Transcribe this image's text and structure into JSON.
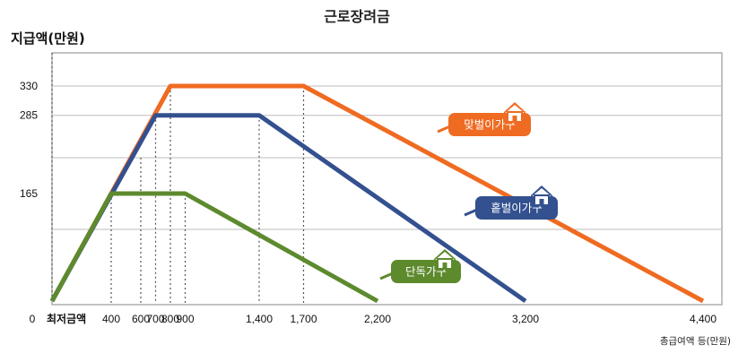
{
  "chart_data": {
    "type": "line",
    "title": "근로장려금",
    "ylabel": "지급액(만원)",
    "xlabel": "총급여액 등(만원)",
    "x_ticks": [
      0,
      400,
      600,
      700,
      800,
      900,
      1400,
      1700,
      2200,
      3200,
      4400
    ],
    "x_tick_labels": [
      "0",
      "400",
      "600",
      "700",
      "800",
      "900",
      "1,400",
      "1,700",
      "2,200",
      "3,200",
      "4,400"
    ],
    "x_floor_label": "최저금액",
    "y_ticks": [
      165,
      285,
      330
    ],
    "y_tick_labels": [
      "165",
      "285",
      "330"
    ],
    "xlim": [
      0,
      4400
    ],
    "ylim": [
      0,
      360
    ],
    "grid": true,
    "series": [
      {
        "name": "맞벌이가구",
        "color": "#EF6B22",
        "points": [
          [
            0,
            0
          ],
          [
            800,
            330
          ],
          [
            1700,
            330
          ],
          [
            4400,
            0
          ]
        ]
      },
      {
        "name": "홑벌이가구",
        "color": "#33508F",
        "points": [
          [
            0,
            0
          ],
          [
            700,
            285
          ],
          [
            1400,
            285
          ],
          [
            3200,
            0
          ]
        ]
      },
      {
        "name": "단독가구",
        "color": "#5E8A2E",
        "points": [
          [
            0,
            0
          ],
          [
            400,
            165
          ],
          [
            900,
            165
          ],
          [
            2200,
            0
          ]
        ]
      }
    ]
  }
}
